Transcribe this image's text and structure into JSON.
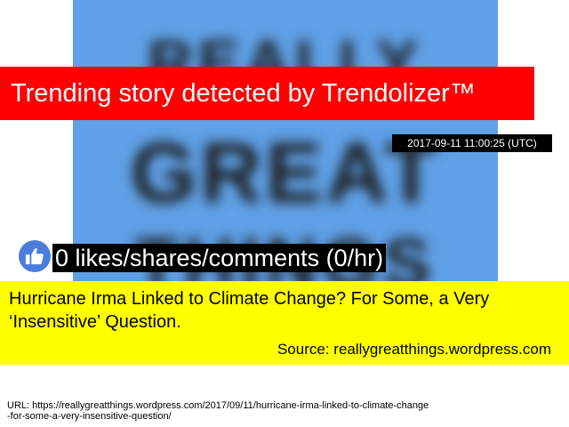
{
  "banner": {
    "text": "Trending story detected by Trendolizer™"
  },
  "timestamp": "2017-09-11 11:00:25 (UTC)",
  "background_image": {
    "lines": [
      "REALLY",
      "GREAT",
      "THINGS"
    ],
    "color": "#5fa0e6"
  },
  "likes": {
    "icon": "thumbs-up-icon",
    "text": "0 likes/shares/comments (0/hr)"
  },
  "article": {
    "title": "Hurricane Irma Linked to Climate Change? For Some, a Very ‘Insensitive’ Question.",
    "source": "Source: reallygreatthings.wordpress.com"
  },
  "url": {
    "line1": "URL: https://reallygreatthings.wordpress.com/2017/09/11/hurricane-irma-linked-to-climate-change",
    "line2": "-for-some-a-very-insensitive-question/"
  },
  "colors": {
    "banner_bg": "#ff0000",
    "title_bg": "#ffff00",
    "like_icon_bg": "#4a7ddc"
  }
}
